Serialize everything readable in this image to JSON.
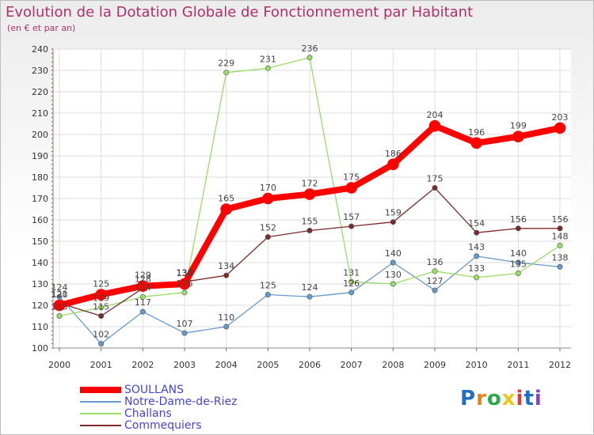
{
  "chart_data": {
    "type": "line",
    "title": "Evolution de la Dotation Globale de Fonctionnement par Habitant",
    "subtitle": "(en € et par an)",
    "xlabel": "",
    "ylabel": "",
    "categories": [
      "2000",
      "2001",
      "2002",
      "2003",
      "2004",
      "2005",
      "2006",
      "2007",
      "2008",
      "2009",
      "2010",
      "2011",
      "2012"
    ],
    "ylim": [
      100,
      240
    ],
    "yticks": [
      100,
      110,
      120,
      130,
      140,
      150,
      160,
      170,
      180,
      190,
      200,
      210,
      220,
      230,
      240
    ],
    "grid": true,
    "legend_position": "bottom-left",
    "series": [
      {
        "name": "SOULLANS",
        "color": "#ff0000",
        "values": [
          120,
          125,
          129,
          130,
          165,
          170,
          172,
          175,
          186,
          204,
          196,
          199,
          203
        ]
      },
      {
        "name": "Notre-Dame-de-Riez",
        "color": "#6699cc",
        "values": [
          124,
          102,
          117,
          107,
          110,
          125,
          124,
          126,
          140,
          127,
          143,
          140,
          138
        ]
      },
      {
        "name": "Challans",
        "color": "#99dd66",
        "values": [
          115,
          119,
          124,
          126,
          229,
          231,
          236,
          131,
          130,
          136,
          133,
          135,
          148
        ]
      },
      {
        "name": "Commequiers",
        "color": "#7a2a2a",
        "values": [
          121,
          115,
          128,
          131,
          134,
          152,
          155,
          157,
          159,
          175,
          154,
          156,
          156
        ]
      }
    ]
  },
  "logo": {
    "text": "Proxiti",
    "colors": [
      "#1f6fc4",
      "#e8801f",
      "#2aa84a",
      "#e8c71f",
      "#d93a3a",
      "#1f6fc4",
      "#8a3fc4"
    ]
  }
}
